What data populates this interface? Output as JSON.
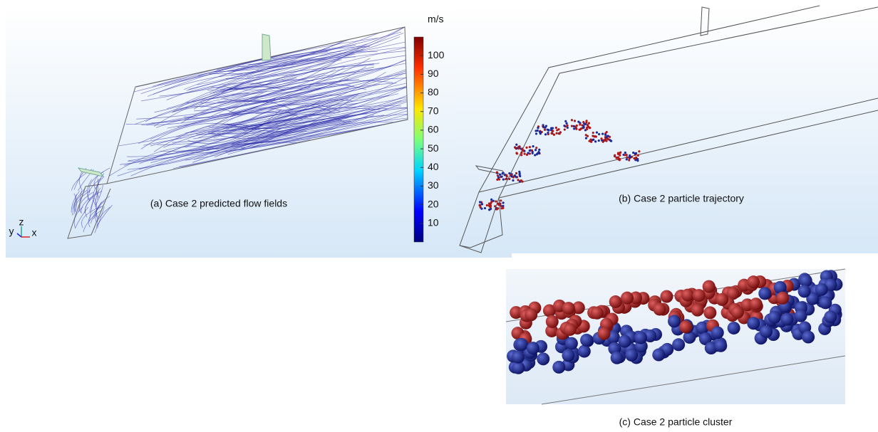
{
  "panels": [
    {
      "caption": "(a) Case 2 predicted flow fields"
    },
    {
      "caption": "(b) Case 2 particle trajectory"
    },
    {
      "caption": "(c) Case 2 particle cluster"
    }
  ],
  "colorbar": {
    "unit": "m/s",
    "range": [
      0,
      110
    ],
    "ticks": [
      10,
      20,
      30,
      40,
      50,
      60,
      70,
      80,
      90,
      100
    ]
  },
  "axes_triad": {
    "labels": [
      "y",
      "z",
      "x"
    ]
  }
}
